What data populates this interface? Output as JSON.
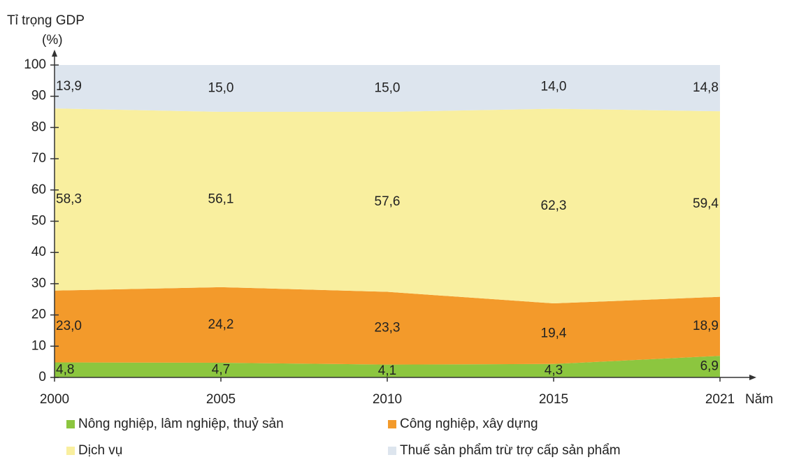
{
  "chart_data": {
    "type": "stacked_area",
    "y_label": "Tỉ trọng GDP",
    "y_unit": "(%)",
    "x_label": "Năm",
    "categories": [
      "2000",
      "2005",
      "2010",
      "2015",
      "2021"
    ],
    "ylim": [
      0,
      100
    ],
    "yticks": [
      0,
      10,
      20,
      30,
      40,
      50,
      60,
      70,
      80,
      90,
      100
    ],
    "series": [
      {
        "name": "Nông nghiệp, lâm nghiệp, thuỷ sản",
        "color": "#8cc63f",
        "values": [
          4.8,
          4.7,
          4.1,
          4.3,
          6.9
        ],
        "value_labels": [
          "4,8",
          "4,7",
          "4,1",
          "4,3",
          "6,9"
        ]
      },
      {
        "name": "Công nghiệp, xây dựng",
        "color": "#f39a2b",
        "values": [
          23.0,
          24.2,
          23.3,
          19.4,
          18.9
        ],
        "value_labels": [
          "23,0",
          "24,2",
          "23,3",
          "19,4",
          "18,9"
        ]
      },
      {
        "name": "Dịch vụ",
        "color": "#f9ef9f",
        "values": [
          58.3,
          56.1,
          57.6,
          62.3,
          59.4
        ],
        "value_labels": [
          "58,3",
          "56,1",
          "57,6",
          "62,3",
          "59,4"
        ]
      },
      {
        "name": "Thuế sản phẩm trừ trợ cấp sản phẩm",
        "color": "#dde5ee",
        "values": [
          13.9,
          15.0,
          15.0,
          14.0,
          14.8
        ],
        "value_labels": [
          "13,9",
          "15,0",
          "15,0",
          "14,0",
          "14,8"
        ]
      }
    ]
  }
}
